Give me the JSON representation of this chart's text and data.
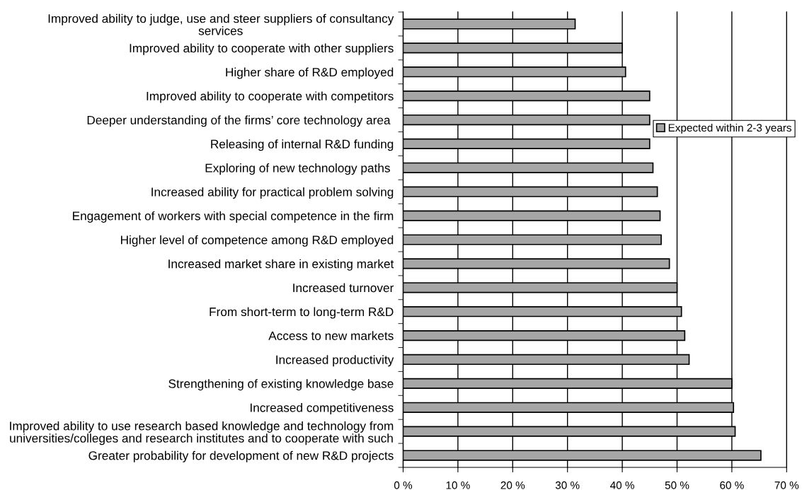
{
  "chart_data": {
    "type": "bar",
    "orientation": "horizontal",
    "categories": [
      "Improved ability to judge, use and steer suppliers of consultancy\nservices",
      "Improved ability to cooperate with other suppliers",
      "Higher share of R&D employed",
      "Improved ability to cooperate with competitors",
      "Deeper understanding of the firms’ core technology area ",
      "Releasing of internal R&D funding",
      "Exploring of new technology paths ",
      "Increased ability for practical problem solving",
      "Engagement of workers with special competence in the firm",
      "Higher level of competence among R&D employed",
      "Increased market share in existing market",
      "Increased turnover",
      "From short-term to long-term R&D",
      "Access to new markets",
      "Increased productivity",
      "Strengthening of existing knowledge base",
      "Increased competitiveness",
      "Improved ability to use research based knowledge and technology from\nuniversities/colleges and research institutes and to cooperate with such",
      "Greater probability for development of new R&D projects"
    ],
    "series": [
      {
        "name": "Expected within 2-3 years",
        "color": "#a6a6a6",
        "values": [
          31.4,
          40.0,
          40.6,
          45.0,
          45.0,
          45.0,
          45.6,
          46.4,
          46.9,
          47.1,
          48.6,
          50.0,
          50.8,
          51.4,
          52.2,
          60.0,
          60.3,
          60.6,
          65.3
        ]
      }
    ],
    "xlim": [
      0,
      70
    ],
    "xticks": [
      {
        "value": 0,
        "label": "0 %"
      },
      {
        "value": 10,
        "label": "10 %"
      },
      {
        "value": 20,
        "label": "20 %"
      },
      {
        "value": 30,
        "label": "30 %"
      },
      {
        "value": 40,
        "label": "40 %"
      },
      {
        "value": 50,
        "label": "50 %"
      },
      {
        "value": 60,
        "label": "60 %"
      },
      {
        "value": 70,
        "label": "70 %"
      }
    ],
    "grid": "x",
    "legend": "right"
  }
}
